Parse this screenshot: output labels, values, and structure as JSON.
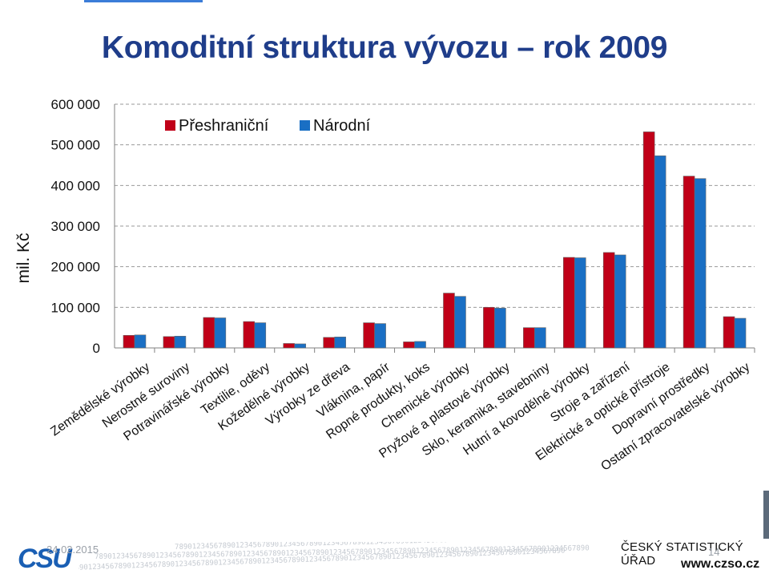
{
  "slide": {
    "title": "Komoditní struktura vývozu – rok 2009",
    "date": "24.02.2015",
    "page_number": "14",
    "org_name": "ČESKÝ STATISTICKÝ ÚŘAD",
    "website": "www.czso.cz",
    "logo_text": "CSU",
    "digits_strip": "789012345678901234567890123456789012345678901234567890123456789012345678901234567890123456789012345678901234567890"
  },
  "chart_data": {
    "type": "bar",
    "title": "",
    "ylabel": "mil. Kč",
    "xlabel": "",
    "ylim": [
      0,
      600000
    ],
    "yticks": [
      0,
      100000,
      200000,
      300000,
      400000,
      500000,
      600000
    ],
    "ytick_labels": [
      "0",
      "100 000",
      "200 000",
      "300 000",
      "400 000",
      "500 000",
      "600 000"
    ],
    "grid": true,
    "legend_position": "top-left",
    "categories": [
      "Zemědělské výrobky",
      "Nerostné suroviny",
      "Potravinářské výrobky",
      "Textilie, oděvy",
      "Kožedělné výrobky",
      "Výrobky ze dřeva",
      "Vláknina, papír",
      "Ropné produkty, koks",
      "Chemické výrobky",
      "Pryžové a plastové výrobky",
      "Sklo, keramika, stavebniny",
      "Hutní a kovodělné výrobky",
      "Stroje a zařízení",
      "Elektrické a optické přístroje",
      "Dopravní prostředky",
      "Ostatní zpracovatelské výrobky"
    ],
    "series": [
      {
        "name": "Přeshraniční",
        "color": "#c00018",
        "values": [
          31000,
          28000,
          75000,
          65000,
          11000,
          26000,
          62000,
          15000,
          135000,
          100000,
          50000,
          223000,
          235000,
          532000,
          423000,
          77000
        ]
      },
      {
        "name": "Národní",
        "color": "#1a6fc4",
        "values": [
          32000,
          29000,
          74000,
          62000,
          10000,
          27000,
          60000,
          16000,
          127000,
          98000,
          50000,
          222000,
          229000,
          473000,
          417000,
          73000
        ]
      }
    ]
  }
}
